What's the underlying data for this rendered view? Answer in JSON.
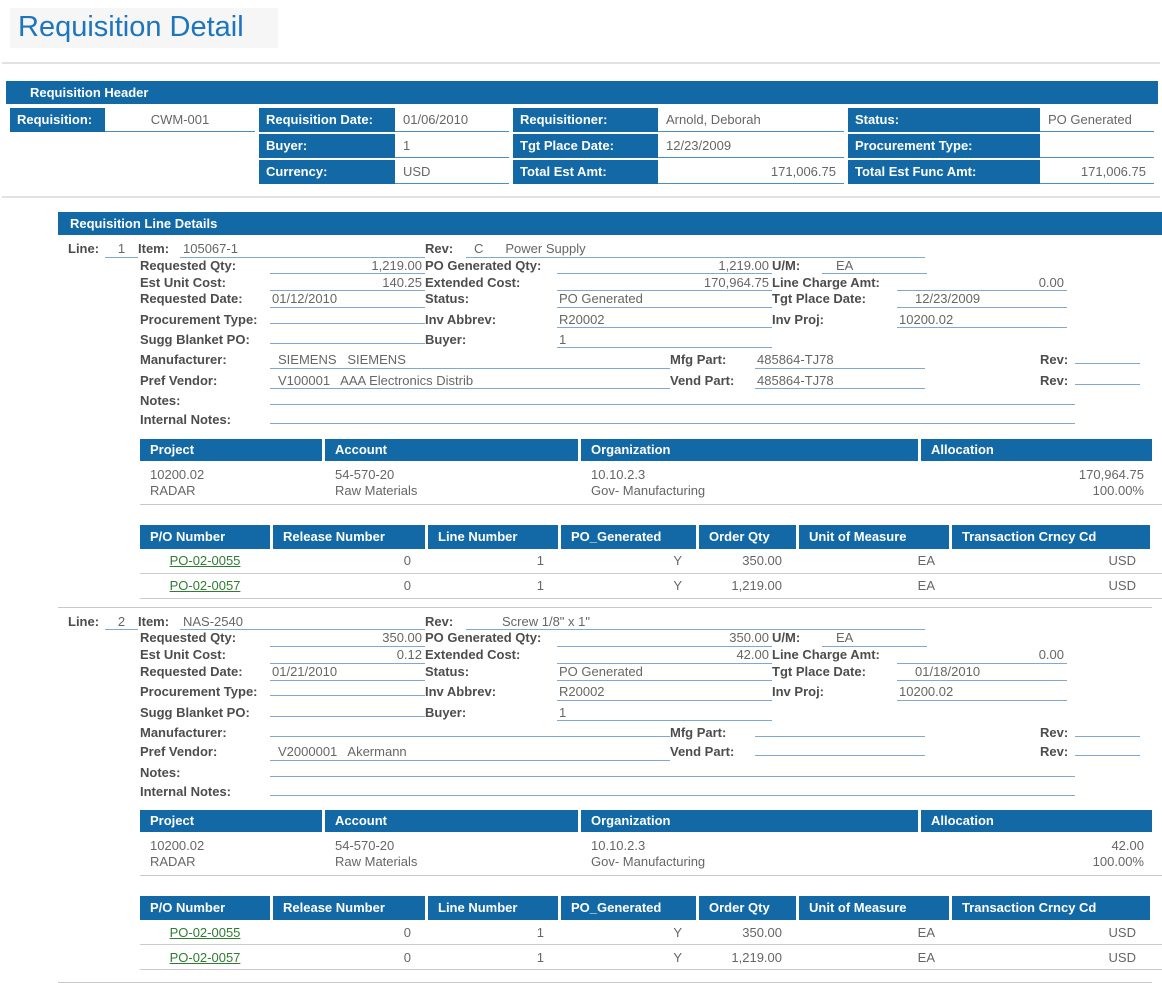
{
  "page": {
    "title": "Requisition Detail"
  },
  "requisition_header": {
    "section_title": "Requisition Header",
    "labels": {
      "requisition": "Requisition:",
      "requisition_date": "Requisition Date:",
      "requisitioner": "Requisitioner:",
      "status": "Status:",
      "buyer": "Buyer:",
      "tgt_place_date": "Tgt Place Date:",
      "procurement_type": "Procurement Type:",
      "currency": "Currency:",
      "total_est_amt": "Total Est Amt:",
      "total_est_func_amt": "Total Est Func Amt:"
    },
    "values": {
      "requisition": "CWM-001",
      "requisition_date": "01/06/2010",
      "requisitioner": "Arnold, Deborah",
      "status": "PO Generated",
      "buyer": "1",
      "tgt_place_date": "12/23/2009",
      "procurement_type": "",
      "currency": "USD",
      "total_est_amt": "171,006.75",
      "total_est_func_amt": "171,006.75"
    }
  },
  "line_details": {
    "section_title": "Requisition Line Details",
    "field_labels": {
      "line": "Line:",
      "item": "Item:",
      "rev": "Rev:",
      "requested_qty": "Requested Qty:",
      "po_generated_qty": "PO Generated Qty:",
      "um": "U/M:",
      "est_unit_cost": "Est Unit Cost:",
      "extended_cost": "Extended Cost:",
      "line_charge_amt": "Line Charge Amt:",
      "requested_date": "Requested Date:",
      "status": "Status:",
      "tgt_place_date": "Tgt Place Date:",
      "procurement_type": "Procurement Type:",
      "inv_abbrev": "Inv Abbrev:",
      "inv_proj": "Inv Proj:",
      "sugg_blanket_po": "Sugg Blanket PO:",
      "buyer": "Buyer:",
      "manufacturer": "Manufacturer:",
      "mfg_part": "Mfg Part:",
      "pref_vendor": "Pref Vendor:",
      "vend_part": "Vend Part:",
      "rev_short": "Rev:",
      "notes": "Notes:",
      "internal_notes": "Internal Notes:"
    },
    "project_table_headers": [
      "Project",
      "Account",
      "Organization",
      "Allocation"
    ],
    "po_table_headers": [
      "P/O Number",
      "Release Number",
      "Line Number",
      "PO_Generated",
      "Order Qty",
      "Unit of Measure",
      "Transaction Crncy Cd"
    ],
    "lines": [
      {
        "line_no": "1",
        "item": "105067-1",
        "rev": "C",
        "rev_desc": "Power Supply",
        "requested_qty": "1,219.00",
        "po_generated_qty": "1,219.00",
        "um": "EA",
        "est_unit_cost": "140.25",
        "extended_cost": "170,964.75",
        "line_charge_amt": "0.00",
        "requested_date": "01/12/2010",
        "status": "PO Generated",
        "tgt_place_date": "12/23/2009",
        "procurement_type": "",
        "inv_abbrev": "R20002",
        "inv_proj": "10200.02",
        "sugg_blanket_po": "",
        "buyer": "1",
        "manufacturer": "SIEMENS   SIEMENS",
        "mfg_part": "485864-TJ78",
        "mfg_rev": "",
        "pref_vendor": "V100001   AAA Electronics Distrib",
        "vend_part": "485864-TJ78",
        "vend_rev": "",
        "notes": "",
        "internal_notes": "",
        "project_rows": [
          [
            "10200.02",
            "54-570-20",
            "10.10.2.3",
            "170,964.75"
          ],
          [
            "RADAR",
            "Raw Materials",
            "Gov- Manufacturing",
            "100.00%"
          ]
        ],
        "po_rows": [
          [
            "PO-02-0055",
            "0",
            "1",
            "Y",
            "350.00",
            "EA",
            "USD"
          ],
          [
            "PO-02-0057",
            "0",
            "1",
            "Y",
            "1,219.00",
            "EA",
            "USD"
          ]
        ]
      },
      {
        "line_no": "2",
        "item": "NAS-2540",
        "rev": "",
        "rev_desc": "Screw 1/8\" x 1\"",
        "requested_qty": "350.00",
        "po_generated_qty": "350.00",
        "um": "EA",
        "est_unit_cost": "0.12",
        "extended_cost": "42.00",
        "line_charge_amt": "0.00",
        "requested_date": "01/21/2010",
        "status": "PO Generated",
        "tgt_place_date": "01/18/2010",
        "procurement_type": "",
        "inv_abbrev": "R20002",
        "inv_proj": "10200.02",
        "sugg_blanket_po": "",
        "buyer": "1",
        "manufacturer": "",
        "mfg_part": "",
        "mfg_rev": "",
        "pref_vendor": "V2000001   Akermann",
        "vend_part": "",
        "vend_rev": "",
        "notes": "",
        "internal_notes": "",
        "project_rows": [
          [
            "10200.02",
            "54-570-20",
            "10.10.2.3",
            "42.00"
          ],
          [
            "RADAR",
            "Raw Materials",
            "Gov- Manufacturing",
            "100.00%"
          ]
        ],
        "po_rows": [
          [
            "PO-02-0055",
            "0",
            "1",
            "Y",
            "350.00",
            "EA",
            "USD"
          ],
          [
            "PO-02-0057",
            "0",
            "1",
            "Y",
            "1,219.00",
            "EA",
            "USD"
          ]
        ]
      }
    ]
  },
  "colors": {
    "bar_blue": "#1269a5",
    "title_blue": "#1c75bd",
    "field_underline_blue": "#7fa9cf",
    "po_link_green": "#2e7d32"
  }
}
